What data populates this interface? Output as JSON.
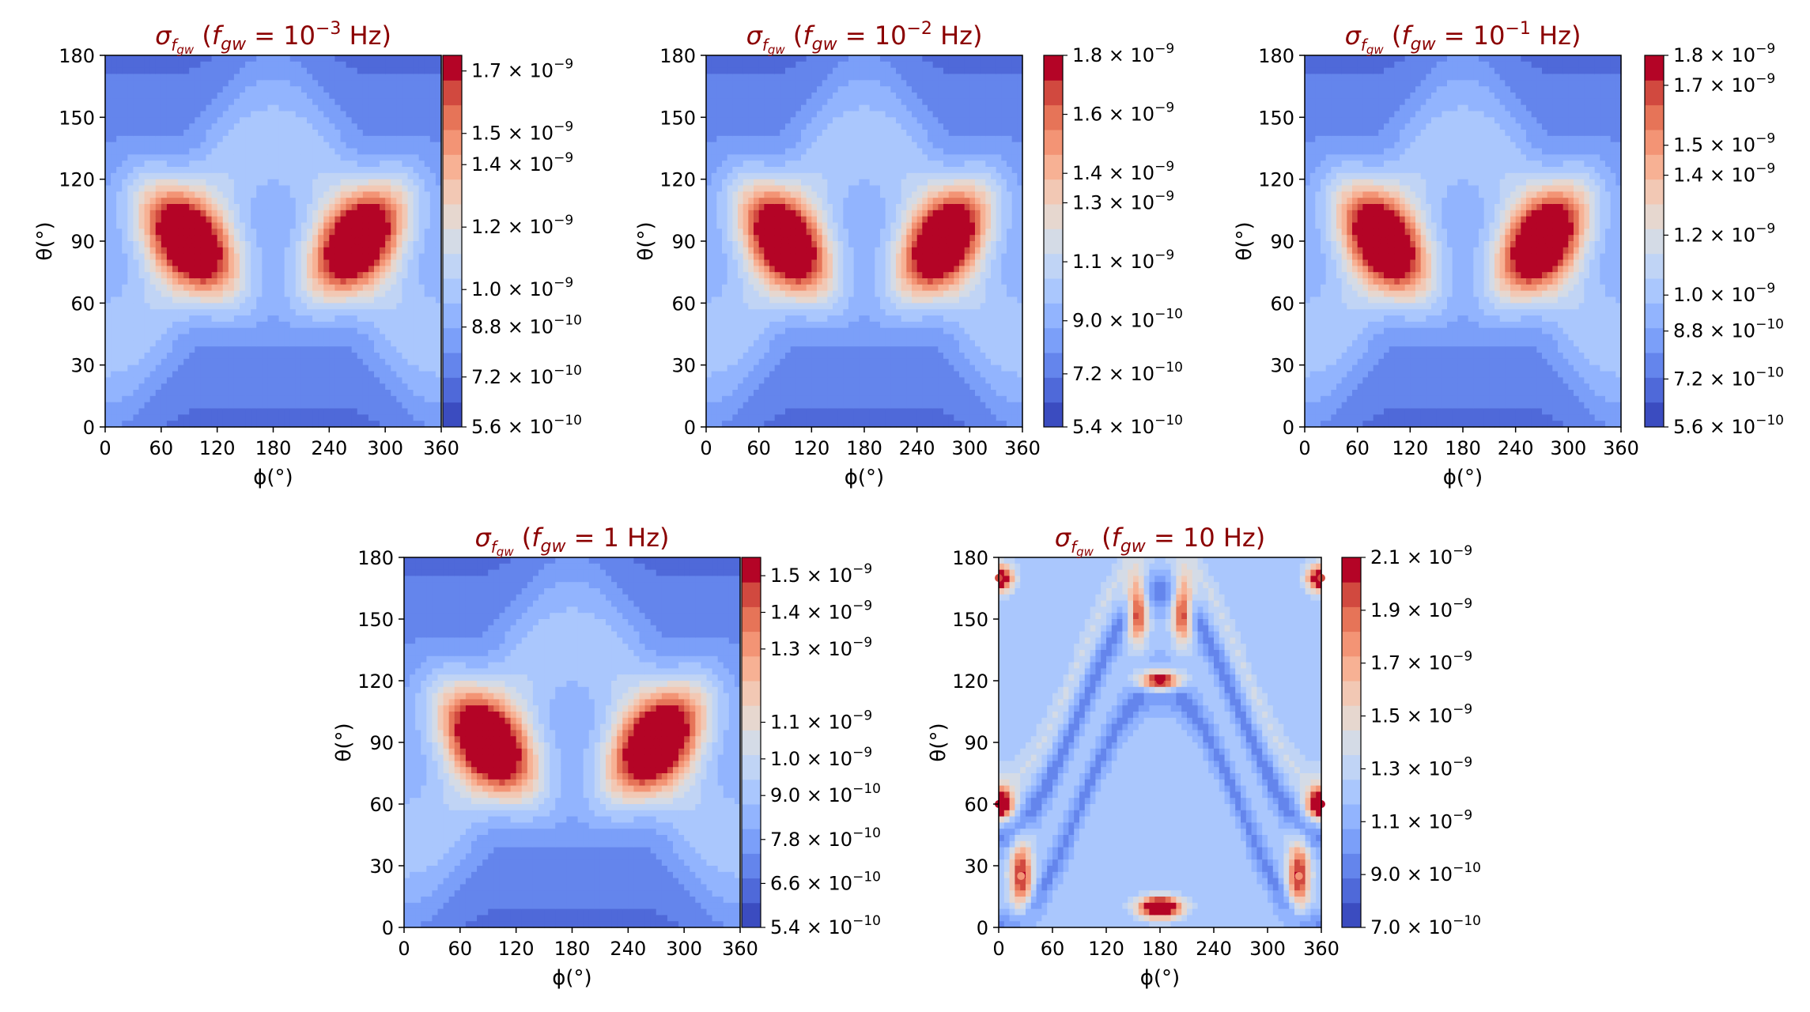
{
  "figure": {
    "symbols": {
      "sigma": "σ",
      "theta": "θ",
      "phi": "ϕ",
      "times": "×"
    },
    "colormap": [
      "#3b4cc0",
      "#4f69d9",
      "#6485ec",
      "#7b9ff9",
      "#92b4fe",
      "#aac7fd",
      "#c0d4f5",
      "#d4dbe6",
      "#e6d7cf",
      "#f2c8b4",
      "#f7b194",
      "#f39475",
      "#e67458",
      "#d1493f",
      "#b40426"
    ]
  },
  "chart_data": [
    {
      "id": "p1",
      "type": "contour",
      "title": "σ_{f_gw} (f_gw = 10^-3 Hz)",
      "title_parts": {
        "pre": "σ",
        "sub1": "f",
        "sub2": "gw",
        "mid": " (",
        "f": "f",
        "fsub": "gw",
        "eq": " = 10",
        "sup": "−3",
        "post": " Hz)"
      },
      "xlabel": "ϕ(°)",
      "ylabel": "θ(°)",
      "xlim": [
        0,
        360
      ],
      "ylim": [
        0,
        180
      ],
      "xticks": [
        "0",
        "60",
        "120",
        "180",
        "240",
        "300",
        "360"
      ],
      "yticks": [
        "0",
        "30",
        "60",
        "90",
        "120",
        "150",
        "180"
      ],
      "colorbar": {
        "min": 5.6e-10,
        "max": 1.75e-09,
        "ticks": [
          {
            "m": "5.6",
            "e": "−10",
            "v": 5.6e-10
          },
          {
            "m": "7.2",
            "e": "−10",
            "v": 7.2e-10
          },
          {
            "m": "8.8",
            "e": "−10",
            "v": 8.8e-10
          },
          {
            "m": "1.0",
            "e": "−9",
            "v": 1e-09
          },
          {
            "m": "1.2",
            "e": "−9",
            "v": 1.2e-09
          },
          {
            "m": "1.4",
            "e": "−9",
            "v": 1.4e-09
          },
          {
            "m": "1.5",
            "e": "−9",
            "v": 1.5e-09
          },
          {
            "m": "1.7",
            "e": "−9",
            "v": 1.7e-09
          }
        ]
      },
      "peaks": [
        {
          "phi": 90,
          "theta": 90,
          "value": 1.75e-09
        },
        {
          "phi": 270,
          "theta": 90,
          "value": 1.75e-09
        }
      ]
    },
    {
      "id": "p2",
      "type": "contour",
      "title": "σ_{f_gw} (f_gw = 10^-2 Hz)",
      "title_parts": {
        "pre": "σ",
        "sub1": "f",
        "sub2": "gw",
        "mid": " (",
        "f": "f",
        "fsub": "gw",
        "eq": " = 10",
        "sup": "−2",
        "post": " Hz)"
      },
      "xlabel": "ϕ(°)",
      "ylabel": "θ(°)",
      "xlim": [
        0,
        360
      ],
      "ylim": [
        0,
        180
      ],
      "xticks": [
        "0",
        "60",
        "120",
        "180",
        "240",
        "300",
        "360"
      ],
      "yticks": [
        "0",
        "30",
        "60",
        "90",
        "120",
        "150",
        "180"
      ],
      "colorbar": {
        "min": 5.4e-10,
        "max": 1.8e-09,
        "ticks": [
          {
            "m": "5.4",
            "e": "−10",
            "v": 5.4e-10
          },
          {
            "m": "7.2",
            "e": "−10",
            "v": 7.2e-10
          },
          {
            "m": "9.0",
            "e": "−10",
            "v": 9e-10
          },
          {
            "m": "1.1",
            "e": "−9",
            "v": 1.1e-09
          },
          {
            "m": "1.3",
            "e": "−9",
            "v": 1.3e-09
          },
          {
            "m": "1.4",
            "e": "−9",
            "v": 1.4e-09
          },
          {
            "m": "1.6",
            "e": "−9",
            "v": 1.6e-09
          },
          {
            "m": "1.8",
            "e": "−9",
            "v": 1.8e-09
          }
        ]
      },
      "peaks": [
        {
          "phi": 90,
          "theta": 90,
          "value": 1.8e-09
        },
        {
          "phi": 270,
          "theta": 90,
          "value": 1.8e-09
        }
      ]
    },
    {
      "id": "p3",
      "type": "contour",
      "title": "σ_{f_gw} (f_gw = 10^-1 Hz)",
      "title_parts": {
        "pre": "σ",
        "sub1": "f",
        "sub2": "gw",
        "mid": " (",
        "f": "f",
        "fsub": "gw",
        "eq": " = 10",
        "sup": "−1",
        "post": " Hz)"
      },
      "xlabel": "ϕ(°)",
      "ylabel": "θ(°)",
      "xlim": [
        0,
        360
      ],
      "ylim": [
        0,
        180
      ],
      "xticks": [
        "0",
        "60",
        "120",
        "180",
        "240",
        "300",
        "360"
      ],
      "yticks": [
        "0",
        "30",
        "60",
        "90",
        "120",
        "150",
        "180"
      ],
      "colorbar": {
        "min": 5.6e-10,
        "max": 1.8e-09,
        "ticks": [
          {
            "m": "5.6",
            "e": "−10",
            "v": 5.6e-10
          },
          {
            "m": "7.2",
            "e": "−10",
            "v": 7.2e-10
          },
          {
            "m": "8.8",
            "e": "−10",
            "v": 8.8e-10
          },
          {
            "m": "1.0",
            "e": "−9",
            "v": 1e-09
          },
          {
            "m": "1.2",
            "e": "−9",
            "v": 1.2e-09
          },
          {
            "m": "1.4",
            "e": "−9",
            "v": 1.4e-09
          },
          {
            "m": "1.5",
            "e": "−9",
            "v": 1.5e-09
          },
          {
            "m": "1.7",
            "e": "−9",
            "v": 1.7e-09
          },
          {
            "m": "1.8",
            "e": "−9",
            "v": 1.8e-09
          }
        ]
      },
      "peaks": [
        {
          "phi": 90,
          "theta": 90,
          "value": 1.75e-09
        },
        {
          "phi": 270,
          "theta": 90,
          "value": 1.75e-09
        }
      ]
    },
    {
      "id": "p4",
      "type": "contour",
      "title": "σ_{f_gw} (f_gw = 1 Hz)",
      "title_parts": {
        "pre": "σ",
        "sub1": "f",
        "sub2": "gw",
        "mid": " (",
        "f": "f",
        "fsub": "gw",
        "eq": " = 1",
        "sup": "",
        "post": " Hz)"
      },
      "xlabel": "ϕ(°)",
      "ylabel": "θ(°)",
      "xlim": [
        0,
        360
      ],
      "ylim": [
        0,
        180
      ],
      "xticks": [
        "0",
        "60",
        "120",
        "180",
        "240",
        "300",
        "360"
      ],
      "yticks": [
        "0",
        "30",
        "60",
        "90",
        "120",
        "150",
        "180"
      ],
      "colorbar": {
        "min": 5.4e-10,
        "max": 1.55e-09,
        "ticks": [
          {
            "m": "5.4",
            "e": "−10",
            "v": 5.4e-10
          },
          {
            "m": "6.6",
            "e": "−10",
            "v": 6.6e-10
          },
          {
            "m": "7.8",
            "e": "−10",
            "v": 7.8e-10
          },
          {
            "m": "9.0",
            "e": "−10",
            "v": 9e-10
          },
          {
            "m": "1.0",
            "e": "−9",
            "v": 1e-09
          },
          {
            "m": "1.1",
            "e": "−9",
            "v": 1.1e-09
          },
          {
            "m": "1.3",
            "e": "−9",
            "v": 1.3e-09
          },
          {
            "m": "1.4",
            "e": "−9",
            "v": 1.4e-09
          },
          {
            "m": "1.5",
            "e": "−9",
            "v": 1.5e-09
          }
        ]
      },
      "peaks": [
        {
          "phi": 90,
          "theta": 90,
          "value": 1.55e-09
        },
        {
          "phi": 270,
          "theta": 90,
          "value": 1.55e-09
        }
      ]
    },
    {
      "id": "p5",
      "type": "contour",
      "title": "σ_{f_gw} (f_gw = 10 Hz)",
      "title_parts": {
        "pre": "σ",
        "sub1": "f",
        "sub2": "gw",
        "mid": " (",
        "f": "f",
        "fsub": "gw",
        "eq": " = 10",
        "sup": "",
        "post": " Hz)"
      },
      "xlabel": "ϕ(°)",
      "ylabel": "θ(°)",
      "xlim": [
        0,
        360
      ],
      "ylim": [
        0,
        180
      ],
      "xticks": [
        "0",
        "60",
        "120",
        "180",
        "240",
        "300",
        "360"
      ],
      "yticks": [
        "0",
        "30",
        "60",
        "90",
        "120",
        "150",
        "180"
      ],
      "colorbar": {
        "min": 7e-10,
        "max": 2.1e-09,
        "ticks": [
          {
            "m": "7.0",
            "e": "−10",
            "v": 7e-10
          },
          {
            "m": "9.0",
            "e": "−10",
            "v": 9e-10
          },
          {
            "m": "1.1",
            "e": "−9",
            "v": 1.1e-09
          },
          {
            "m": "1.3",
            "e": "−9",
            "v": 1.3e-09
          },
          {
            "m": "1.5",
            "e": "−9",
            "v": 1.5e-09
          },
          {
            "m": "1.7",
            "e": "−9",
            "v": 1.7e-09
          },
          {
            "m": "1.9",
            "e": "−9",
            "v": 1.9e-09
          },
          {
            "m": "2.1",
            "e": "−9",
            "v": 2.1e-09
          }
        ]
      },
      "peaks": [
        {
          "phi": 180,
          "theta": 10,
          "value": 2.1e-09
        },
        {
          "phi": 180,
          "theta": 120,
          "value": 2.1e-09
        },
        {
          "phi": 0,
          "theta": 60,
          "value": 2.1e-09
        },
        {
          "phi": 360,
          "theta": 60,
          "value": 2.1e-09
        },
        {
          "phi": 0,
          "theta": 170,
          "value": 2e-09
        },
        {
          "phi": 360,
          "theta": 170,
          "value": 2e-09
        },
        {
          "phi": 155,
          "theta": 155,
          "value": 1.9e-09
        },
        {
          "phi": 205,
          "theta": 155,
          "value": 1.9e-09
        },
        {
          "phi": 25,
          "theta": 25,
          "value": 1.8e-09
        },
        {
          "phi": 335,
          "theta": 25,
          "value": 1.8e-09
        }
      ]
    }
  ]
}
